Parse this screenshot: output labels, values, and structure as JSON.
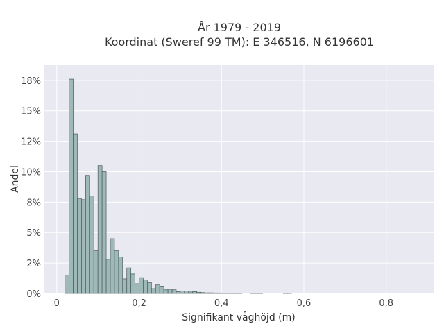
{
  "chart_data": {
    "type": "bar",
    "title_lines": [
      "År 1979 - 2019",
      "Koordinat (Sweref 99 TM): E 346516, N 6196601"
    ],
    "xlabel": "Signifikant våghöjd (m)",
    "ylabel": "Andel",
    "bin_width": 0.01,
    "bins_start": [
      0.02,
      0.03,
      0.04,
      0.05,
      0.06,
      0.07,
      0.08,
      0.09,
      0.1,
      0.11,
      0.12,
      0.13,
      0.14,
      0.15,
      0.16,
      0.17,
      0.18,
      0.19,
      0.2,
      0.21,
      0.22,
      0.23,
      0.24,
      0.25,
      0.26,
      0.27,
      0.28,
      0.29,
      0.3,
      0.31,
      0.32,
      0.33,
      0.34,
      0.35,
      0.36,
      0.37,
      0.38,
      0.39,
      0.4,
      0.41,
      0.42,
      0.43,
      0.44,
      0.45,
      0.46,
      0.47,
      0.48,
      0.49,
      0.5,
      0.51,
      0.52,
      0.53,
      0.54,
      0.55,
      0.56,
      0.57,
      0.58,
      0.59,
      0.6,
      0.61,
      0.62,
      0.63,
      0.64,
      0.65,
      0.66,
      0.67,
      0.68,
      0.69,
      0.7,
      0.71,
      0.72,
      0.73,
      0.74,
      0.75,
      0.76,
      0.77,
      0.78,
      0.79
    ],
    "values": [
      1.5,
      17.6,
      13.1,
      7.8,
      7.7,
      9.7,
      8.0,
      3.5,
      10.5,
      10.0,
      2.8,
      4.5,
      3.5,
      3.0,
      1.2,
      2.1,
      1.6,
      0.8,
      1.3,
      1.1,
      0.9,
      0.4,
      0.7,
      0.6,
      0.3,
      0.35,
      0.3,
      0.15,
      0.2,
      0.2,
      0.12,
      0.15,
      0.1,
      0.07,
      0.05,
      0.05,
      0.04,
      0.04,
      0.03,
      0.03,
      0.02,
      0.02,
      0.02,
      0.0,
      0.0,
      0.02,
      0.02,
      0.02,
      0.0,
      0.0,
      0.0,
      0.0,
      0.0,
      0.02,
      0.02,
      0.0,
      0.0,
      0.0,
      0.0,
      0.0,
      0.0,
      0.0,
      0.0,
      0.0,
      0.0,
      0.0,
      0.0,
      0.0,
      0.0,
      0.0,
      0.0,
      0.0,
      0.0,
      0.0,
      0.0,
      0.0,
      0.0,
      0.0
    ],
    "xlim": [
      -0.03,
      0.915
    ],
    "ylim": [
      0,
      18.8
    ],
    "xticks": [
      0,
      0.2,
      0.4,
      0.6,
      0.8
    ],
    "xtick_labels": [
      "0",
      "0,2",
      "0,4",
      "0,6",
      "0,8"
    ],
    "yticks": [
      0,
      2.5,
      5,
      7.5,
      10,
      12.5,
      15,
      17.5
    ],
    "ytick_labels": [
      "0%",
      "2%",
      "5%",
      "8%",
      "10%",
      "12%",
      "15%",
      "18%"
    ],
    "grid": true,
    "colors": {
      "plot_bg": "#e9e9f1",
      "grid": "#ffffff",
      "bar_fill": "#9fb8b8",
      "bar_edge": "#4a5a5a"
    }
  }
}
